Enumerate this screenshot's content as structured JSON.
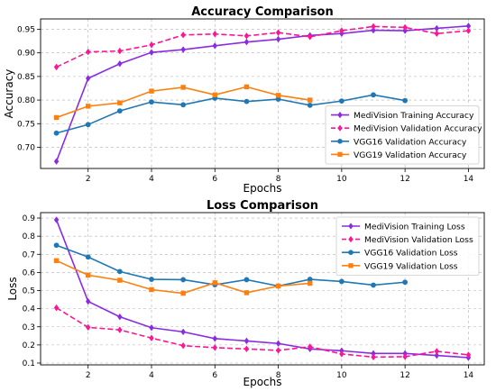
{
  "chart_data": [
    {
      "type": "line",
      "title": "Accuracy Comparison",
      "xlabel": "Epochs",
      "ylabel": "Accuracy",
      "xlim": [
        0.5,
        14.5
      ],
      "ylim": [
        0.655,
        0.972
      ],
      "xticks": [
        2,
        4,
        6,
        8,
        10,
        12,
        14
      ],
      "yticks": [
        0.7,
        0.75,
        0.8,
        0.85,
        0.9,
        0.95
      ],
      "ytick_labels": [
        "0.70",
        "0.75",
        "0.80",
        "0.85",
        "0.90",
        "0.95"
      ],
      "grid": true,
      "legend_position": "bottom-right",
      "series": [
        {
          "name": "MediVision Training Accuracy",
          "color": "#8a2be2",
          "marker": "diamond",
          "dash": "solid",
          "x": [
            1,
            2,
            3,
            4,
            5,
            6,
            7,
            8,
            9,
            10,
            11,
            12,
            13,
            14
          ],
          "values": [
            0.67,
            0.846,
            0.877,
            0.901,
            0.907,
            0.915,
            0.923,
            0.929,
            0.937,
            0.941,
            0.948,
            0.947,
            0.952,
            0.957
          ]
        },
        {
          "name": "MediVision Validation Accuracy",
          "color": "#ff1493",
          "marker": "diamond",
          "dash": "dashed",
          "x": [
            1,
            2,
            3,
            4,
            5,
            6,
            7,
            8,
            9,
            10,
            11,
            12,
            13,
            14
          ],
          "values": [
            0.87,
            0.902,
            0.904,
            0.917,
            0.938,
            0.94,
            0.936,
            0.943,
            0.934,
            0.947,
            0.956,
            0.954,
            0.941,
            0.947
          ]
        },
        {
          "name": "VGG16 Validation Accuracy",
          "color": "#1f77b4",
          "marker": "circle",
          "dash": "solid",
          "x": [
            1,
            2,
            3,
            4,
            5,
            6,
            7,
            8,
            9,
            10,
            11,
            12
          ],
          "values": [
            0.73,
            0.748,
            0.777,
            0.796,
            0.79,
            0.804,
            0.797,
            0.802,
            0.789,
            0.798,
            0.811,
            0.799
          ]
        },
        {
          "name": "VGG19 Validation Accuracy",
          "color": "#ff7f0e",
          "marker": "square",
          "dash": "solid",
          "x": [
            1,
            2,
            3,
            4,
            5,
            6,
            7,
            8,
            9
          ],
          "values": [
            0.763,
            0.787,
            0.794,
            0.819,
            0.827,
            0.811,
            0.828,
            0.81,
            0.8
          ]
        }
      ]
    },
    {
      "type": "line",
      "title": "Loss Comparison",
      "xlabel": "Epochs",
      "ylabel": "Loss",
      "xlim": [
        0.5,
        14.5
      ],
      "ylim": [
        0.09,
        0.93
      ],
      "xticks": [
        2,
        4,
        6,
        8,
        10,
        12,
        14
      ],
      "yticks": [
        0.1,
        0.2,
        0.3,
        0.4,
        0.5,
        0.6,
        0.7,
        0.8,
        0.9
      ],
      "ytick_labels": [
        "0.1",
        "0.2",
        "0.3",
        "0.4",
        "0.5",
        "0.6",
        "0.7",
        "0.8",
        "0.9"
      ],
      "grid": true,
      "legend_position": "top-right",
      "series": [
        {
          "name": "MediVision Training Loss",
          "color": "#8a2be2",
          "marker": "diamond",
          "dash": "solid",
          "x": [
            1,
            2,
            3,
            4,
            5,
            6,
            7,
            8,
            9,
            10,
            11,
            12,
            13,
            14
          ],
          "values": [
            0.89,
            0.44,
            0.355,
            0.295,
            0.272,
            0.235,
            0.222,
            0.208,
            0.178,
            0.168,
            0.153,
            0.153,
            0.142,
            0.13
          ]
        },
        {
          "name": "MediVision Validation Loss",
          "color": "#ff1493",
          "marker": "diamond",
          "dash": "dashed",
          "x": [
            1,
            2,
            3,
            4,
            5,
            6,
            7,
            8,
            9,
            10,
            11,
            12,
            13,
            14
          ],
          "values": [
            0.405,
            0.297,
            0.283,
            0.238,
            0.196,
            0.185,
            0.178,
            0.17,
            0.19,
            0.15,
            0.133,
            0.135,
            0.165,
            0.145
          ]
        },
        {
          "name": "VGG16 Validation Loss",
          "color": "#1f77b4",
          "marker": "circle",
          "dash": "solid",
          "x": [
            1,
            2,
            3,
            4,
            5,
            6,
            7,
            8,
            9,
            10,
            11,
            12
          ],
          "values": [
            0.75,
            0.685,
            0.605,
            0.562,
            0.56,
            0.532,
            0.56,
            0.525,
            0.562,
            0.55,
            0.53,
            0.546
          ]
        },
        {
          "name": "VGG19 Validation Loss",
          "color": "#ff7f0e",
          "marker": "square",
          "dash": "solid",
          "x": [
            1,
            2,
            3,
            4,
            5,
            6,
            7,
            8,
            9
          ],
          "values": [
            0.665,
            0.585,
            0.557,
            0.505,
            0.485,
            0.543,
            0.488,
            0.525,
            0.54
          ]
        }
      ]
    }
  ]
}
